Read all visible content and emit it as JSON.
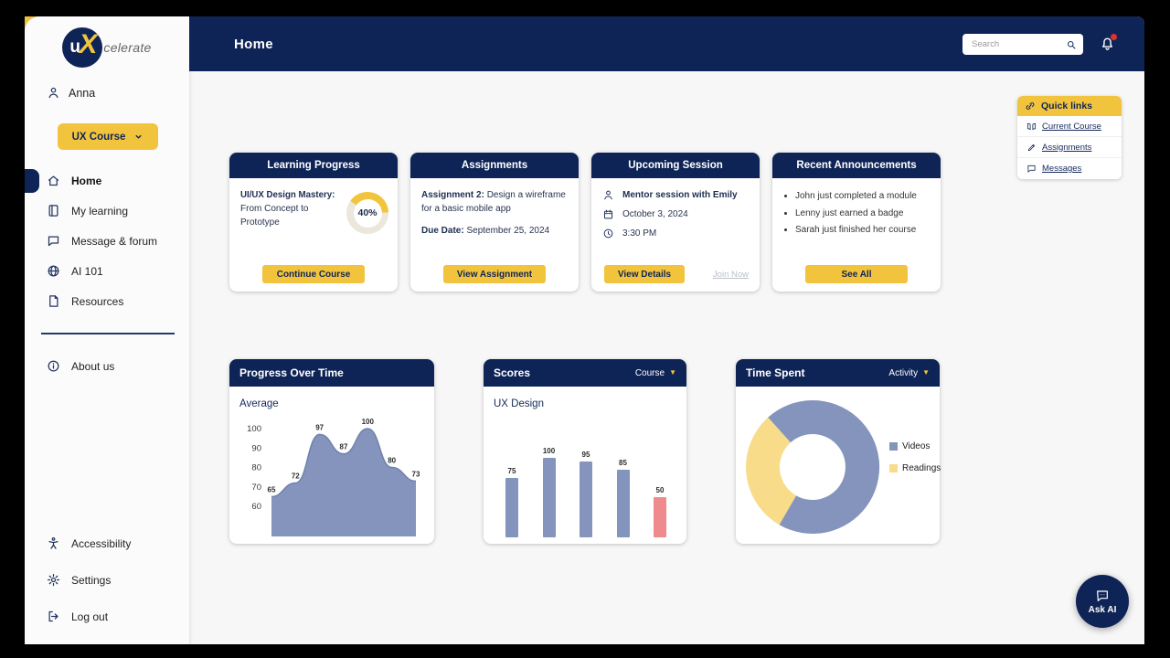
{
  "colors": {
    "navy": "#0f2456",
    "yellow": "#f2c43d",
    "chart_blue": "#8494bd",
    "chart_red": "#ef8a8d",
    "donut_yellow": "#f8dc8a",
    "ring_track": "#ebe7dd",
    "notification_red": "#e03131"
  },
  "app": {
    "logo_u": "u",
    "logo_x": "X",
    "logo_suffix": "celerate"
  },
  "header": {
    "title": "Home",
    "search_placeholder": "Search"
  },
  "sidebar": {
    "user_name": "Anna",
    "course_selector": "UX Course",
    "nav": [
      {
        "label": "Home",
        "icon": "home-icon",
        "active": true
      },
      {
        "label": "My learning",
        "icon": "book-icon"
      },
      {
        "label": "Message & forum",
        "icon": "chat-icon"
      },
      {
        "label": "AI 101",
        "icon": "globe-icon"
      },
      {
        "label": "Resources",
        "icon": "file-icon"
      }
    ],
    "secondary": [
      {
        "label": "About us",
        "icon": "info-icon"
      }
    ],
    "footer": [
      {
        "label": "Accessibility",
        "icon": "accessibility-icon"
      },
      {
        "label": "Settings",
        "icon": "gear-icon"
      },
      {
        "label": "Log out",
        "icon": "logout-icon"
      }
    ]
  },
  "quick_links": {
    "title": "Quick links",
    "items": [
      {
        "label": "Current Course",
        "icon": "book-open-icon"
      },
      {
        "label": "Assignments",
        "icon": "pencil-icon"
      },
      {
        "label": "Messages",
        "icon": "chat-icon"
      }
    ]
  },
  "cards": {
    "learning_progress": {
      "title": "Learning Progress",
      "course_title": "UI/UX Design Mastery:",
      "course_subtitle": "From Concept to Prototype",
      "progress_percent": 40,
      "progress_label": "40%",
      "button_label": "Continue Course"
    },
    "assignments": {
      "title": "Assignments",
      "assignment_label": "Assignment 2:",
      "assignment_text": "Design a wireframe for a basic mobile app",
      "due_label": "Due Date:",
      "due_date": "September 25, 2024",
      "button_label": "View Assignment"
    },
    "upcoming_session": {
      "title": "Upcoming Session",
      "session_title": "Mentor session with Emily",
      "date": "October 3, 2024",
      "time": "3:30 PM",
      "button_label": "View Details",
      "join_link_label": "Join Now"
    },
    "announcements": {
      "title": "Recent Announcements",
      "items": [
        "John just completed a module",
        "Lenny just earned a badge",
        "Sarah just finished her course"
      ],
      "button_label": "See All"
    }
  },
  "chart_data": [
    {
      "type": "area",
      "title": "Progress Over Time",
      "subtitle": "Average",
      "x": [
        1,
        2,
        3,
        4,
        5,
        6,
        7
      ],
      "values": [
        65,
        72,
        97,
        87,
        100,
        80,
        73
      ],
      "ylim": [
        60,
        100
      ],
      "yticks": [
        100,
        90,
        80,
        70,
        60
      ],
      "grid": false,
      "color": "#8494bd",
      "line_color": "#7081ab"
    },
    {
      "type": "bar",
      "title": "Scores",
      "filter_label": "Course",
      "subtitle": "UX Design",
      "values": [
        75,
        100,
        95,
        85,
        50
      ],
      "bar_colors": [
        "#8494bd",
        "#8494bd",
        "#8494bd",
        "#8494bd",
        "#ef8a8d"
      ],
      "ylim": [
        0,
        100
      ]
    },
    {
      "type": "donut",
      "title": "Time Spent",
      "filter_label": "Activity",
      "legend_position": "right",
      "start_angle": -42,
      "series": [
        {
          "name": "Videos",
          "value": 70,
          "color": "#8494bd"
        },
        {
          "name": "Readings",
          "value": 30,
          "color": "#f8dc8a"
        }
      ]
    }
  ],
  "ask_ai_label": "Ask AI"
}
